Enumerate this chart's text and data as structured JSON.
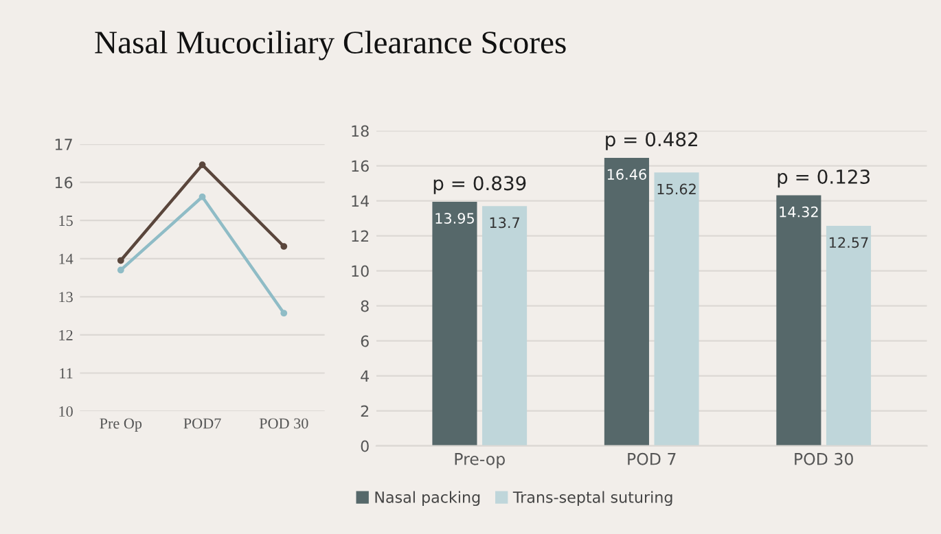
{
  "chart_data": [
    {
      "type": "line",
      "title": "Nasal Mucociliary Clearance Scores",
      "categories": [
        "Pre Op",
        "POD7",
        "POD 30"
      ],
      "series": [
        {
          "color": "#5a463c",
          "values": [
            13.95,
            16.46,
            14.32
          ]
        },
        {
          "color": "#8fbcc6",
          "values": [
            13.7,
            15.62,
            12.57
          ]
        }
      ],
      "ylim": [
        10,
        17
      ],
      "yticks": [
        10,
        11,
        12,
        13,
        14,
        15,
        16,
        17
      ],
      "grid": "y",
      "marker": "circle"
    },
    {
      "type": "bar",
      "categories": [
        "Pre-op",
        "POD 7",
        "POD 30"
      ],
      "series": [
        {
          "name": "Nasal packing",
          "color": "#56686a",
          "values": [
            13.95,
            16.46,
            14.32
          ]
        },
        {
          "name": "Trans-septal suturing",
          "color": "#bfd6da",
          "values": [
            13.7,
            15.62,
            12.57
          ]
        }
      ],
      "ylim": [
        0,
        18
      ],
      "yticks": [
        0,
        2,
        4,
        6,
        8,
        10,
        12,
        14,
        16,
        18
      ],
      "grid": "y",
      "data_labels": true,
      "legend": "bottom left",
      "annotations": [
        "p = 0.839",
        "p = 0.482",
        "p = 0.123"
      ]
    }
  ]
}
